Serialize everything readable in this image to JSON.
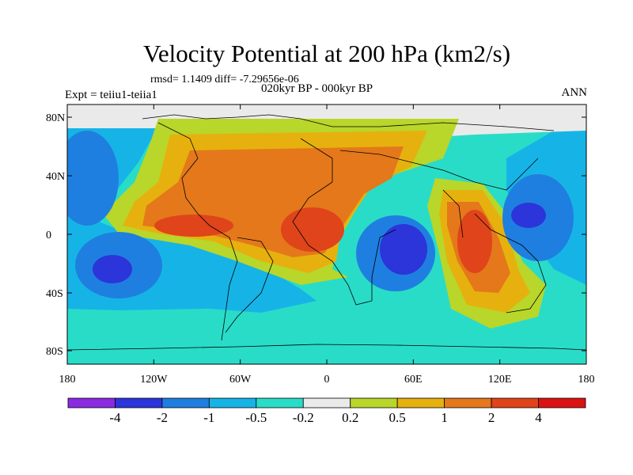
{
  "title": "Velocity Potential at 200 hPa (km2/s)",
  "stats": "rmsd= 1.1409  diff= -7.29656e-06",
  "periods": "020kyr BP - 000kyr BP",
  "experiment": "Expt = teiiu1-teiia1",
  "season": "ANN",
  "y_axis_ticks": [
    "80N",
    "40N",
    "0",
    "40S",
    "80S"
  ],
  "x_axis_ticks": [
    "180",
    "120W",
    "60W",
    "0",
    "60E",
    "120E",
    "180"
  ],
  "colorbar": {
    "labels": [
      "-4",
      "-2",
      "-1",
      "-0.5",
      "-0.2",
      "0.2",
      "0.5",
      "1",
      "2",
      "4"
    ],
    "colors": [
      "#8a2be2",
      "#2b35d9",
      "#1f7fe0",
      "#16b4e6",
      "#29dcc8",
      "#eaeaea",
      "#b9d62a",
      "#e6b10e",
      "#e4781b",
      "#e0441a",
      "#dc1212"
    ]
  },
  "colors": {
    "pos_high": "#e0441a",
    "pos_mid": "#e4781b",
    "pos_low": "#e6b10e",
    "pos_weak": "#b9d62a",
    "neutral": "#eaeaea",
    "neg_weak": "#29dcc8",
    "neg_low": "#16b4e6",
    "neg_mid": "#1f7fe0",
    "neg_high": "#2b35d9"
  }
}
